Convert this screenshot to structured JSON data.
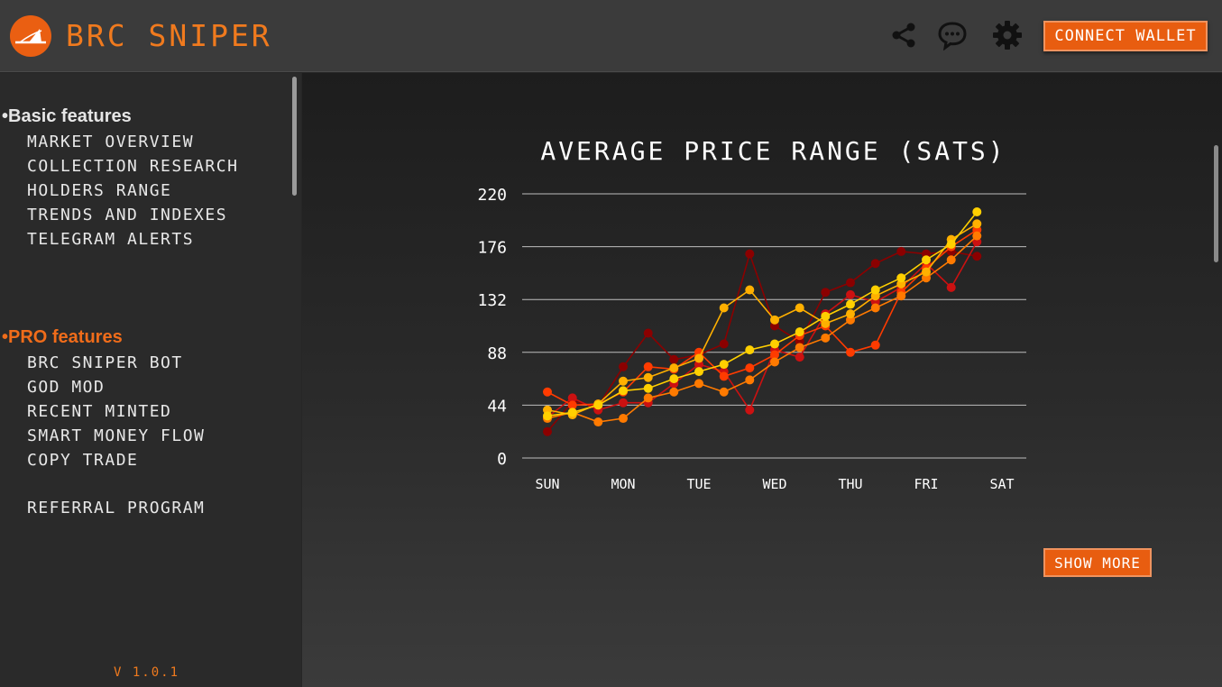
{
  "app": {
    "title": "BRC SNIPER",
    "version": "V 1.0.1"
  },
  "header": {
    "icons": [
      "share-icon",
      "chat-icon",
      "gear-icon"
    ],
    "connect_label": "CONNECT WALLET"
  },
  "sidebar": {
    "basic_title": "•Basic features",
    "basic_items": [
      "MARKET OVERVIEW",
      "COLLECTION RESEARCH",
      "HOLDERS RANGE",
      "TRENDS AND INDEXES",
      "TELEGRAM ALERTS"
    ],
    "pro_title": "•PRO features",
    "pro_items": [
      "BRC SNIPER BOT",
      "GOD MOD",
      "RECENT MINTED",
      "SMART MONEY FLOW",
      "COPY TRADE"
    ],
    "referral": "REFERRAL PROGRAM"
  },
  "main": {
    "show_more": "SHOW MORE"
  },
  "colors": {
    "accent": "#e85d10",
    "series": [
      "#8b0000",
      "#cc1111",
      "#ff3b00",
      "#ff7a00",
      "#ffb000",
      "#ffd000"
    ]
  },
  "chart_data": {
    "type": "scatter",
    "title": "AVERAGE PRICE RANGE (SATS)",
    "xlabel": "",
    "ylabel": "",
    "categories": [
      "SUN",
      "MON",
      "TUE",
      "WED",
      "THU",
      "FRI",
      "SAT"
    ],
    "yticks": [
      0,
      44,
      88,
      132,
      176,
      220
    ],
    "ylim": [
      0,
      220
    ],
    "grid": true,
    "series": [
      {
        "values": [
          [
            0,
            22
          ],
          [
            0.33,
            47
          ],
          [
            0.67,
            43
          ],
          [
            1,
            76
          ],
          [
            1.33,
            104
          ],
          [
            1.67,
            82
          ],
          [
            2,
            86
          ],
          [
            2.33,
            95
          ],
          [
            2.67,
            170
          ],
          [
            3,
            110
          ],
          [
            3.33,
            97
          ],
          [
            3.67,
            138
          ],
          [
            4,
            146
          ],
          [
            4.33,
            162
          ],
          [
            4.67,
            172
          ],
          [
            5,
            170
          ],
          [
            5.33,
            172
          ],
          [
            5.67,
            168
          ]
        ]
      },
      {
        "values": [
          [
            0,
            34
          ],
          [
            0.33,
            50
          ],
          [
            0.67,
            40
          ],
          [
            1,
            46
          ],
          [
            1.33,
            46
          ],
          [
            1.67,
            62
          ],
          [
            2,
            78
          ],
          [
            2.33,
            72
          ],
          [
            2.67,
            40
          ],
          [
            3,
            90
          ],
          [
            3.33,
            84
          ],
          [
            3.67,
            120
          ],
          [
            4,
            136
          ],
          [
            4.33,
            130
          ],
          [
            4.67,
            142
          ],
          [
            5,
            162
          ],
          [
            5.33,
            142
          ],
          [
            5.67,
            180
          ]
        ]
      },
      {
        "values": [
          [
            0,
            55
          ],
          [
            0.33,
            44
          ],
          [
            0.67,
            45
          ],
          [
            1,
            55
          ],
          [
            1.33,
            76
          ],
          [
            1.67,
            74
          ],
          [
            2,
            88
          ],
          [
            2.33,
            68
          ],
          [
            2.67,
            75
          ],
          [
            3,
            86
          ],
          [
            3.33,
            102
          ],
          [
            3.67,
            110
          ],
          [
            4,
            88
          ],
          [
            4.33,
            94
          ],
          [
            4.67,
            138
          ],
          [
            5,
            158
          ],
          [
            5.33,
            176
          ],
          [
            5.67,
            190
          ]
        ]
      },
      {
        "values": [
          [
            0,
            33
          ],
          [
            0.33,
            38
          ],
          [
            0.67,
            30
          ],
          [
            1,
            33
          ],
          [
            1.33,
            50
          ],
          [
            1.67,
            55
          ],
          [
            2,
            62
          ],
          [
            2.33,
            55
          ],
          [
            2.67,
            65
          ],
          [
            3,
            80
          ],
          [
            3.33,
            92
          ],
          [
            3.67,
            100
          ],
          [
            4,
            115
          ],
          [
            4.33,
            125
          ],
          [
            4.67,
            135
          ],
          [
            5,
            150
          ],
          [
            5.33,
            165
          ],
          [
            5.67,
            185
          ]
        ]
      },
      {
        "values": [
          [
            0,
            40
          ],
          [
            0.33,
            36
          ],
          [
            0.67,
            45
          ],
          [
            1,
            64
          ],
          [
            1.33,
            67
          ],
          [
            1.67,
            75
          ],
          [
            2,
            83
          ],
          [
            2.33,
            125
          ],
          [
            2.67,
            140
          ],
          [
            3,
            115
          ],
          [
            3.33,
            125
          ],
          [
            3.67,
            112
          ],
          [
            4,
            120
          ],
          [
            4.33,
            135
          ],
          [
            4.67,
            145
          ],
          [
            5,
            155
          ],
          [
            5.33,
            182
          ],
          [
            5.67,
            195
          ]
        ]
      },
      {
        "values": [
          [
            0,
            35
          ],
          [
            0.33,
            38
          ],
          [
            0.67,
            44
          ],
          [
            1,
            56
          ],
          [
            1.33,
            58
          ],
          [
            1.67,
            66
          ],
          [
            2,
            72
          ],
          [
            2.33,
            78
          ],
          [
            2.67,
            90
          ],
          [
            3,
            95
          ],
          [
            3.33,
            105
          ],
          [
            3.67,
            118
          ],
          [
            4,
            128
          ],
          [
            4.33,
            140
          ],
          [
            4.67,
            150
          ],
          [
            5,
            165
          ],
          [
            5.33,
            178
          ],
          [
            5.67,
            205
          ]
        ]
      }
    ]
  }
}
